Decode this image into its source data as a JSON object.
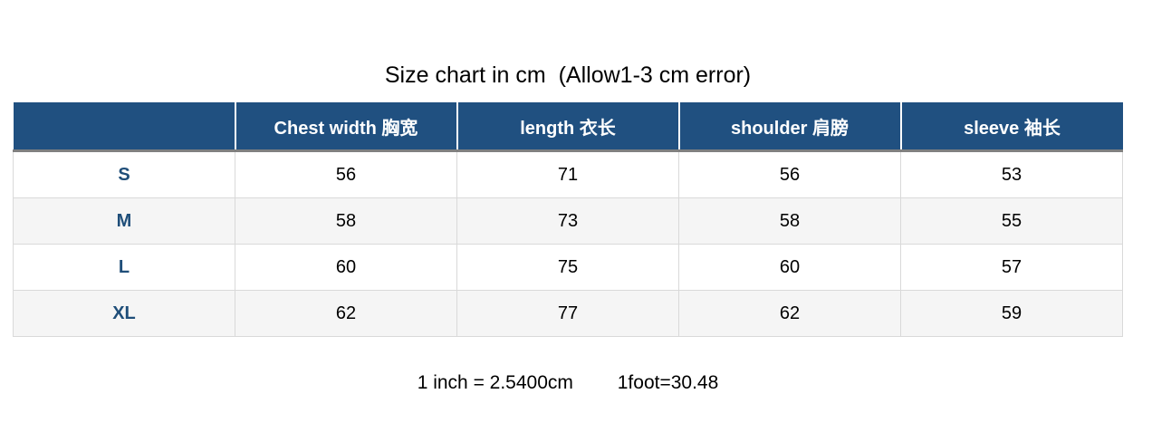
{
  "chart_data": {
    "type": "table",
    "title": "Size chart in cm  (Allow1-3 cm error)",
    "columns": [
      "",
      "Chest width 胸宽",
      "length 衣长",
      "shoulder 肩膀",
      "sleeve 袖长"
    ],
    "rows": [
      [
        "S",
        56,
        71,
        56,
        53
      ],
      [
        "M",
        58,
        73,
        58,
        55
      ],
      [
        "L",
        60,
        75,
        60,
        57
      ],
      [
        "XL",
        62,
        77,
        62,
        59
      ]
    ],
    "notes": [
      "1 inch = 2.5400cm",
      "1foot=30.48"
    ]
  },
  "colors": {
    "header_bg": "#205080",
    "header_text": "#FFFFFF",
    "size_label": "#1F4E79",
    "alt_row_bg": "#F5F5F5",
    "row_border": "#D9D9D9",
    "header_bottom_border": "#808080",
    "title_text": "#000000"
  }
}
